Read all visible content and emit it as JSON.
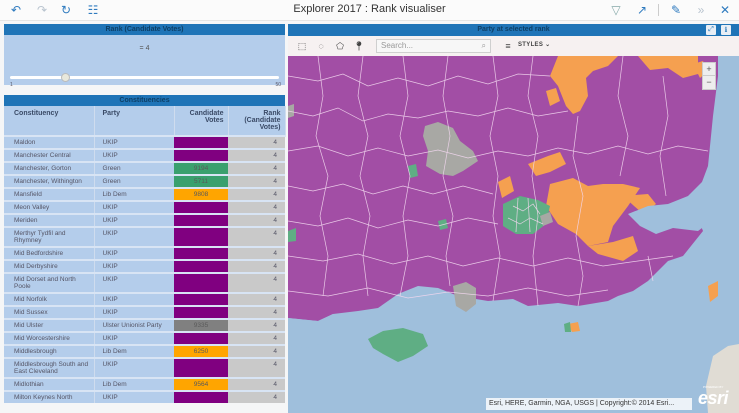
{
  "app": {
    "title": "Explorer 2017 : Rank visualiser",
    "toolbar": {
      "undo": "undo-icon",
      "redo": "redo-icon",
      "refresh": "refresh-icon",
      "page": "page-icon",
      "filter": "filter-icon",
      "export": "export-icon",
      "edit": "edit-icon",
      "collapse": "collapse-icon",
      "close": "close-icon"
    }
  },
  "rank_panel": {
    "title": "Rank (Candidate Votes)",
    "value_label": "= 4",
    "slider": {
      "min_label": "1",
      "max_label": "50",
      "value": 4,
      "min": 1,
      "max": 50
    }
  },
  "constituencies": {
    "title": "Constituencies",
    "columns": [
      "Constituency",
      "Party",
      "Candidate Votes",
      "Rank (Candidate Votes)"
    ],
    "rows": [
      {
        "constituency": "Maldon",
        "party": "UKIP",
        "votes": "",
        "rank": "4",
        "color": "#800080",
        "tall": false
      },
      {
        "constituency": "Manchester Central",
        "party": "UKIP",
        "votes": "",
        "rank": "4",
        "color": "#800080",
        "tall": false
      },
      {
        "constituency": "Manchester, Gorton",
        "party": "Green",
        "votes": "9194",
        "rank": "4",
        "color": "#3aa06e",
        "tall": false
      },
      {
        "constituency": "Manchester, Withington",
        "party": "Green",
        "votes": "5711",
        "rank": "4",
        "color": "#3aa06e",
        "tall": false
      },
      {
        "constituency": "Mansfield",
        "party": "Lib Dem",
        "votes": "9808",
        "rank": "4",
        "color": "#ffa500",
        "tall": false
      },
      {
        "constituency": "Meon Valley",
        "party": "UKIP",
        "votes": "",
        "rank": "4",
        "color": "#800080",
        "tall": false
      },
      {
        "constituency": "Meriden",
        "party": "UKIP",
        "votes": "",
        "rank": "4",
        "color": "#800080",
        "tall": false
      },
      {
        "constituency": "Merthyr Tydfil and Rhymney",
        "party": "UKIP",
        "votes": "",
        "rank": "4",
        "color": "#800080",
        "tall": true
      },
      {
        "constituency": "Mid Bedfordshire",
        "party": "UKIP",
        "votes": "",
        "rank": "4",
        "color": "#800080",
        "tall": false
      },
      {
        "constituency": "Mid Derbyshire",
        "party": "UKIP",
        "votes": "",
        "rank": "4",
        "color": "#800080",
        "tall": false
      },
      {
        "constituency": "Mid Dorset and North Poole",
        "party": "UKIP",
        "votes": "",
        "rank": "4",
        "color": "#800080",
        "tall": true
      },
      {
        "constituency": "Mid Norfolk",
        "party": "UKIP",
        "votes": "",
        "rank": "4",
        "color": "#800080",
        "tall": false
      },
      {
        "constituency": "Mid Sussex",
        "party": "UKIP",
        "votes": "",
        "rank": "4",
        "color": "#800080",
        "tall": false
      },
      {
        "constituency": "Mid Ulster",
        "party": "Ulster Unionist Party",
        "votes": "9335",
        "rank": "4",
        "color": "#808080",
        "tall": false
      },
      {
        "constituency": "Mid Worcestershire",
        "party": "UKIP",
        "votes": "",
        "rank": "4",
        "color": "#800080",
        "tall": false
      },
      {
        "constituency": "Middlesbrough",
        "party": "Lib Dem",
        "votes": "6250",
        "rank": "4",
        "color": "#ffa500",
        "tall": false
      },
      {
        "constituency": "Middlesbrough South and East Cleveland",
        "party": "UKIP",
        "votes": "",
        "rank": "4",
        "color": "#800080",
        "tall": true
      },
      {
        "constituency": "Midlothian",
        "party": "Lib Dem",
        "votes": "9564",
        "rank": "4",
        "color": "#ffa500",
        "tall": false
      },
      {
        "constituency": "Milton Keynes North",
        "party": "UKIP",
        "votes": "",
        "rank": "4",
        "color": "#800080",
        "tall": false
      }
    ]
  },
  "map_panel": {
    "title": "Party at selected rank",
    "header_buttons": {
      "expand": "expand-icon",
      "info": "info-icon"
    },
    "tools": [
      "rectangle-select-icon",
      "circle-select-icon",
      "polygon-select-icon",
      "pin-icon"
    ],
    "search_placeholder": "Search...",
    "styles_label": "STYLES",
    "zoom_in": "+",
    "zoom_out": "−",
    "attribution": "Esri, HERE, Garmin, NGA, USGS | Copyright:© 2014 Esri...",
    "logo": "esri",
    "logo_powered": "POWERED BY",
    "colors": {
      "ukip": "#a24ea5",
      "libdem": "#f5a050",
      "green": "#5fae84",
      "other": "#a8a8a4",
      "sea": "#9fbfdc",
      "border": "#f0d8f0"
    }
  }
}
